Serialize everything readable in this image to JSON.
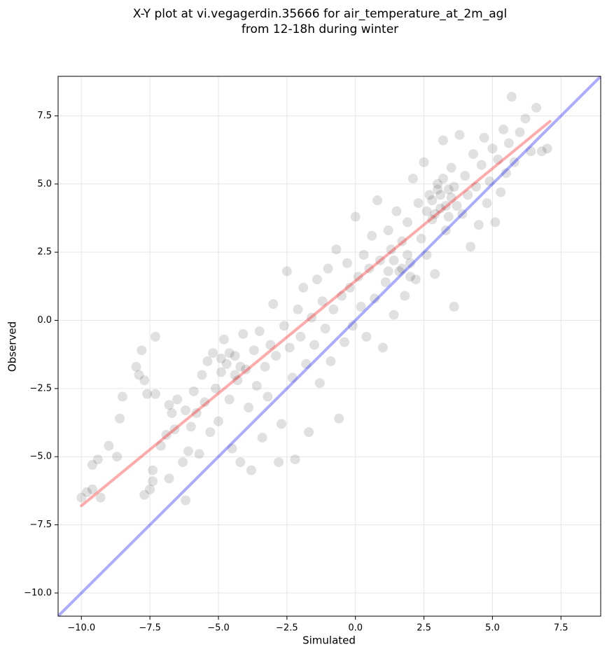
{
  "chart_data": {
    "type": "scatter",
    "title": "X-Y plot at vi.vegagerdin.35666 for air_temperature_at_2m_agl",
    "subtitle": "from 12-18h during winter",
    "xlabel": "Simulated",
    "ylabel": "Observed",
    "color": "#000000",
    "xlim": [
      -10.85,
      8.95
    ],
    "ylim": [
      -10.85,
      8.95
    ],
    "grid": true,
    "xticks": [
      {
        "value": -10,
        "label": "−10.0"
      },
      {
        "value": -7.5,
        "label": "−7.5"
      },
      {
        "value": -5,
        "label": "−5.0"
      },
      {
        "value": -2.5,
        "label": "−2.5"
      },
      {
        "value": 0,
        "label": "0.0"
      },
      2.5,
      {
        "value": 5,
        "label": "5.0"
      },
      7.5
    ],
    "yticks": [
      {
        "value": -10,
        "label": "−10.0"
      },
      {
        "value": -7.5,
        "label": "−7.5"
      },
      {
        "value": -5,
        "label": "−5.0"
      },
      {
        "value": -2.5,
        "label": "−2.5"
      },
      {
        "value": 0,
        "label": "0.0"
      },
      2.5,
      {
        "value": 5,
        "label": "5.0"
      },
      7.5
    ],
    "x": [
      -10,
      -9.8,
      -9.6,
      -9.6,
      -9.4,
      -9.3,
      -9.0,
      -8.7,
      -8.6,
      -8.5,
      -8.0,
      -7.9,
      -7.8,
      -7.7,
      -7.6,
      -7.7,
      -7.5,
      -7.4,
      -7.4,
      -7.3,
      -7.3,
      -7.1,
      -6.9,
      -6.8,
      -6.8,
      -6.7,
      -6.6,
      -6.5,
      -6.3,
      -6.2,
      -6.2,
      -6.1,
      -6.0,
      -5.9,
      -5.8,
      -5.7,
      -5.6,
      -5.5,
      -5.4,
      -5.3,
      -5.2,
      -5.1,
      -5.0,
      -4.9,
      -4.8,
      -4.7,
      -4.6,
      -4.5,
      -4.4,
      -4.3,
      -4.2,
      -4.1,
      -4.0,
      -3.9,
      -3.8,
      -3.7,
      -3.6,
      -3.5,
      -3.4,
      -3.3,
      -3.2,
      -3.1,
      -3.0,
      -2.9,
      -2.8,
      -2.7,
      -2.6,
      -2.5,
      -2.4,
      -2.3,
      -2.2,
      -2.1,
      -2.0,
      -1.9,
      -1.8,
      -1.7,
      -1.6,
      -1.5,
      -1.4,
      -1.3,
      -1.2,
      -1.1,
      -1.0,
      -0.9,
      -0.8,
      -0.7,
      -0.6,
      -0.5,
      -0.4,
      -0.3,
      -0.2,
      -0.1,
      0,
      0.1,
      0.2,
      0.3,
      0.4,
      0.5,
      0.6,
      0.7,
      0.8,
      0.9,
      1.0,
      1.1,
      1.2,
      1.3,
      1.4,
      1.5,
      1.6,
      1.7,
      1.8,
      1.9,
      2.0,
      2.1,
      2.2,
      2.3,
      2.4,
      2.5,
      2.6,
      2.7,
      2.8,
      2.9,
      3.0,
      3.1,
      3.2,
      3.3,
      3.4,
      3.5,
      3.6,
      3.7,
      3.8,
      3.9,
      4.0,
      4.1,
      4.2,
      4.3,
      4.4,
      4.5,
      4.6,
      4.7,
      4.8,
      4.9,
      5.0,
      5.1,
      5.2,
      5.3,
      5.4,
      5.5,
      5.6,
      5.7,
      5.8,
      6.0,
      6.2,
      6.4,
      6.6,
      6.8,
      7.0,
      2.8,
      3.1,
      3.3,
      3.5,
      3.2,
      2.9,
      3.6,
      3.4,
      2.6,
      3.0,
      1.4,
      1.7,
      2.0,
      1.2,
      1.9,
      -4.6,
      -4.2,
      -4.9,
      -4.4
    ],
    "values": [
      -6.5,
      -6.3,
      -5.3,
      -6.2,
      -5.1,
      -6.5,
      -4.6,
      -5.0,
      -3.6,
      -2.8,
      -1.7,
      -2.0,
      -1.1,
      -2.2,
      -2.7,
      -6.4,
      -6.2,
      -5.5,
      -5.9,
      -2.7,
      -0.6,
      -4.6,
      -4.2,
      -3.1,
      -5.8,
      -3.4,
      -4.0,
      -2.9,
      -5.2,
      -6.6,
      -3.3,
      -4.8,
      -3.9,
      -2.6,
      -3.4,
      -4.9,
      -2.0,
      -3.0,
      -1.5,
      -4.1,
      -1.2,
      -2.5,
      -3.7,
      -1.9,
      -0.7,
      -1.6,
      -2.9,
      -4.7,
      -1.3,
      -2.2,
      -5.2,
      -0.5,
      -1.8,
      -3.2,
      -5.5,
      -1.1,
      -2.4,
      -0.4,
      -4.3,
      -1.7,
      -2.8,
      -0.9,
      0.6,
      -1.3,
      -5.2,
      -3.8,
      -0.2,
      1.8,
      -1.0,
      -2.1,
      -5.1,
      0.4,
      -0.6,
      1.2,
      -1.6,
      -4.1,
      0.1,
      -0.9,
      1.5,
      -2.3,
      0.7,
      -0.3,
      1.9,
      -1.5,
      0.4,
      2.6,
      -3.6,
      0.9,
      -0.8,
      2.1,
      1.2,
      -0.2,
      3.8,
      1.6,
      0.5,
      2.4,
      -0.6,
      1.9,
      3.1,
      0.8,
      4.4,
      2.2,
      -1.0,
      1.4,
      3.3,
      2.6,
      0.2,
      4.0,
      1.8,
      2.9,
      0.9,
      3.6,
      2.1,
      5.2,
      1.5,
      4.3,
      3.0,
      5.8,
      2.4,
      4.6,
      3.7,
      1.7,
      5.0,
      4.1,
      6.6,
      3.3,
      4.8,
      5.6,
      0.5,
      4.2,
      6.8,
      3.9,
      5.3,
      4.6,
      2.7,
      6.1,
      4.9,
      3.5,
      5.7,
      6.7,
      4.3,
      5.1,
      6.3,
      3.6,
      5.9,
      4.7,
      7.0,
      5.4,
      6.5,
      8.2,
      5.8,
      6.9,
      7.4,
      6.2,
      7.8,
      6.2,
      6.3,
      4.4,
      4.6,
      4.2,
      4.5,
      5.2,
      3.9,
      4.9,
      3.8,
      4.0,
      4.8,
      2.2,
      1.9,
      1.6,
      1.8,
      2.4,
      -1.2,
      -1.7,
      -1.4,
      -2.0
    ],
    "lines": [
      {
        "color": "#0000ff",
        "x": [
          -10.85,
          8.95
        ],
        "values": [
          -10.85,
          8.95
        ]
      },
      {
        "color": "#ff0000",
        "x": [
          -10,
          7.1
        ],
        "values": [
          -6.8,
          7.3
        ]
      }
    ]
  }
}
